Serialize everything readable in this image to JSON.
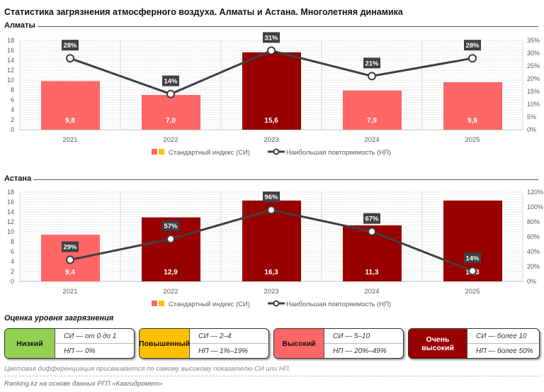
{
  "title": "Статистика загрязнения атмосферного воздуха. Алматы и Астана. Многолетняя динамика",
  "colors": {
    "high": "#ff6666",
    "very_high": "#990000",
    "low": "#92d050",
    "elevated": "#ffc000",
    "line": "#404040"
  },
  "chart_data": [
    {
      "type": "bar+line",
      "title": "Алматы",
      "categories": [
        "2021",
        "2022",
        "2023",
        "2024",
        "2025"
      ],
      "series": [
        {
          "name": "Стандартный индекс (СИ)",
          "type": "bar",
          "values": [
            9.8,
            7.0,
            15.6,
            7.9,
            9.6
          ],
          "labels": [
            "9,8",
            "7,0",
            "15,6",
            "7,9",
            "9,6"
          ],
          "levels": [
            "high",
            "high",
            "very_high",
            "high",
            "high"
          ],
          "axis": "left"
        },
        {
          "name": "Наибольшая повторяемость (НП)",
          "type": "line",
          "values": [
            28,
            14,
            31,
            21,
            28
          ],
          "labels": [
            "28%",
            "14%",
            "31%",
            "21%",
            "28%"
          ],
          "axis": "right"
        }
      ],
      "ylim": [
        0,
        18
      ],
      "yticks": [
        "0",
        "2",
        "4",
        "6",
        "8",
        "10",
        "12",
        "14",
        "16",
        "18"
      ],
      "y2lim": [
        0,
        35
      ],
      "y2ticks": [
        "0%",
        "5%",
        "10%",
        "15%",
        "20%",
        "25%",
        "30%",
        "35%"
      ],
      "legend": "bottom",
      "grid": true
    },
    {
      "type": "bar+line",
      "title": "Астана",
      "categories": [
        "2021",
        "2022",
        "2023",
        "2024",
        "2025"
      ],
      "series": [
        {
          "name": "Стандартный индекс (СИ)",
          "type": "bar",
          "values": [
            9.4,
            12.9,
            16.3,
            11.3,
            16.3
          ],
          "labels": [
            "9,4",
            "12,9",
            "16,3",
            "11,3",
            "16,3"
          ],
          "levels": [
            "high",
            "very_high",
            "very_high",
            "very_high",
            "very_high"
          ],
          "axis": "left"
        },
        {
          "name": "Наибольшая повторяемость (НП)",
          "type": "line",
          "values": [
            29,
            57,
            96,
            67,
            14
          ],
          "labels": [
            "29%",
            "57%",
            "96%",
            "67%",
            "14%"
          ],
          "axis": "right"
        }
      ],
      "ylim": [
        0,
        18
      ],
      "yticks": [
        "0",
        "2",
        "4",
        "6",
        "8",
        "10",
        "12",
        "14",
        "16",
        "18"
      ],
      "y2lim": [
        0,
        120
      ],
      "y2ticks": [
        "0%",
        "20%",
        "40%",
        "60%",
        "80%",
        "100%",
        "120%"
      ],
      "legend": "bottom",
      "grid": true
    }
  ],
  "legend_section": {
    "heading": "Оценка уровня загрязнения",
    "levels": [
      {
        "name": "Низкий",
        "si": "СИ — от 0 до 1",
        "np": "НП — 0%"
      },
      {
        "name": "Повышенный",
        "si": "СИ — 2–4",
        "np": "НП — 1%–19%"
      },
      {
        "name": "Высокий",
        "si": "СИ — 5–10",
        "np": "НП — 20%–49%"
      },
      {
        "name": "Очень высокий",
        "si": "СИ — более 10",
        "np": "НП — более 50%"
      }
    ],
    "note": "Цветовая дифференциация присваивается по самому высокому показателю СИ или НП.",
    "source": "Ranking.kz на основе данных РГП «Казгидромет»"
  }
}
